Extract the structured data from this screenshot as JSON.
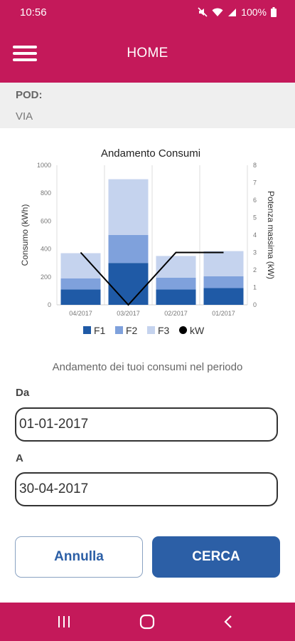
{
  "status_bar": {
    "time": "10:56",
    "battery": "100%",
    "icons": [
      "mute-icon",
      "wifi-icon",
      "signal-icon",
      "battery-icon"
    ]
  },
  "app_bar": {
    "title": "HOME",
    "menu_icon": "hamburger-menu-icon"
  },
  "info": {
    "pod_label": "POD:",
    "via_label": "VIA"
  },
  "chart_data": {
    "type": "bar",
    "title": "Andamento Consumi",
    "categories": [
      "04/2017",
      "03/2017",
      "02/2017",
      "01/2017"
    ],
    "series": [
      {
        "name": "F1",
        "type": "bar",
        "axis": "left",
        "stacked": true,
        "color": "#1f5aa6",
        "values": [
          110,
          300,
          110,
          120
        ]
      },
      {
        "name": "F2",
        "type": "bar",
        "axis": "left",
        "stacked": true,
        "color": "#7fa1dc",
        "values": [
          80,
          200,
          85,
          85
        ]
      },
      {
        "name": "F3",
        "type": "bar",
        "axis": "left",
        "stacked": true,
        "color": "#c5d3ee",
        "values": [
          180,
          400,
          155,
          180
        ]
      },
      {
        "name": "kW",
        "type": "line",
        "axis": "right",
        "color": "#000000",
        "values": [
          3,
          0,
          3,
          3
        ]
      }
    ],
    "ylabel": "Consumo (kWh)",
    "y2label": "Potenza massima (kW)",
    "ylim": [
      0,
      1000
    ],
    "y2lim": [
      0,
      8
    ],
    "yticks": [
      0,
      200,
      400,
      600,
      800,
      1000
    ],
    "y2ticks": [
      0,
      1,
      2,
      3,
      4,
      5,
      6,
      7,
      8
    ],
    "grid": "vertical",
    "legend": "bottom"
  },
  "period_caption": "Andamento dei tuoi consumi nel periodo",
  "form": {
    "from_label": "Da",
    "from_value": "01-01-2017",
    "to_label": "A",
    "to_value": "30-04-2017"
  },
  "buttons": {
    "cancel": "Annulla",
    "search": "CERCA"
  },
  "nav_bar": {
    "icons": [
      "recent-apps-icon",
      "home-icon",
      "back-icon"
    ]
  },
  "colors": {
    "brand": "#c4195a",
    "primary": "#2c5fa6",
    "panel": "#efefef"
  }
}
